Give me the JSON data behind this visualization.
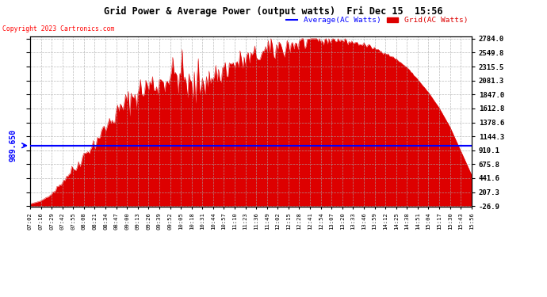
{
  "title": "Grid Power & Average Power (output watts)  Fri Dec 15  15:56",
  "copyright": "Copyright 2023 Cartronics.com",
  "average_label": "Average(AC Watts)",
  "grid_label": "Grid(AC Watts)",
  "average_value": 989.65,
  "y_min": -26.9,
  "y_max": 2784.0,
  "y_ticks": [
    2784.0,
    2549.8,
    2315.5,
    2081.3,
    1847.0,
    1612.8,
    1378.6,
    1144.3,
    910.1,
    675.8,
    441.6,
    207.3,
    -26.9
  ],
  "left_avg_label": "989.650",
  "background_color": "#ffffff",
  "fill_color": "#dd0000",
  "avg_line_color": "#0000ff",
  "grid_line_color": "#aaaaaa",
  "title_color": "#000000",
  "copyright_color": "#ff0000",
  "x_times": [
    "07:02",
    "07:16",
    "07:29",
    "07:42",
    "07:55",
    "08:08",
    "08:21",
    "08:34",
    "08:47",
    "09:00",
    "09:13",
    "09:26",
    "09:39",
    "09:52",
    "10:05",
    "10:18",
    "10:31",
    "10:44",
    "10:57",
    "11:10",
    "11:23",
    "11:36",
    "11:49",
    "12:02",
    "12:15",
    "12:28",
    "12:41",
    "12:54",
    "13:07",
    "13:20",
    "13:33",
    "13:46",
    "13:59",
    "14:12",
    "14:25",
    "14:38",
    "14:51",
    "15:04",
    "15:17",
    "15:30",
    "15:43",
    "15:56"
  ],
  "y_values": [
    10,
    60,
    180,
    380,
    600,
    820,
    1050,
    1280,
    1520,
    1720,
    1880,
    1980,
    2050,
    2150,
    2200,
    1900,
    2100,
    2200,
    2280,
    2350,
    2420,
    2500,
    2560,
    2620,
    2670,
    2710,
    2740,
    2760,
    2780,
    2750,
    2720,
    2680,
    2620,
    2540,
    2440,
    2300,
    2100,
    1880,
    1620,
    1300,
    900,
    500
  ],
  "y_noise": [
    0,
    0,
    20,
    50,
    80,
    120,
    100,
    150,
    180,
    200,
    250,
    300,
    280,
    320,
    350,
    400,
    380,
    300,
    250,
    220,
    200,
    180,
    250,
    300,
    200,
    180,
    150,
    100,
    80,
    60,
    50,
    40,
    30,
    20,
    15,
    10,
    8,
    5,
    3,
    2,
    1,
    0
  ]
}
